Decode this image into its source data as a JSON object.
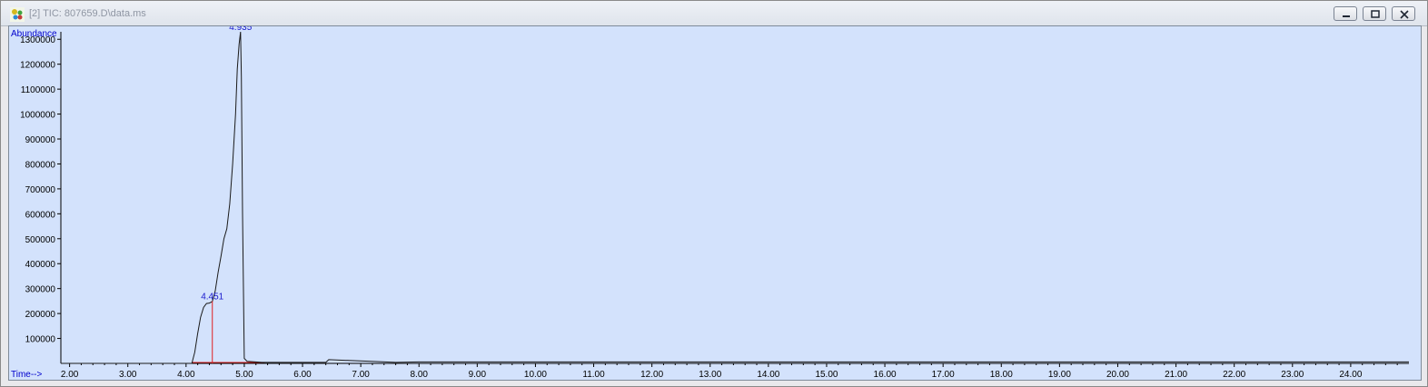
{
  "window": {
    "title": "[2] TIC: 807659.D\\data.ms",
    "icon": "chromatogram-app-icon",
    "controls": [
      "minimize-icon",
      "restore-icon",
      "close-icon"
    ]
  },
  "colors": {
    "plot_background": "#d3e2fc",
    "trace": "#1a1a1a",
    "axis_text": "#000000",
    "axis_label": "#0000cc",
    "peak_label": "#1a1acc",
    "integration_marker": "#e02020"
  },
  "chart_data": {
    "type": "line",
    "ylabel": "Abundance",
    "xlabel": "Time-->",
    "xlim": [
      1.85,
      25.0
    ],
    "ylim": [
      0,
      1330000
    ],
    "x_ticks": [
      2,
      3,
      4,
      5,
      6,
      7,
      8,
      9,
      10,
      11,
      12,
      13,
      14,
      15,
      16,
      17,
      18,
      19,
      20,
      21,
      22,
      23,
      24
    ],
    "x_tick_labels": [
      "2.00",
      "3.00",
      "4.00",
      "5.00",
      "6.00",
      "7.00",
      "8.00",
      "9.00",
      "10.00",
      "11.00",
      "12.00",
      "13.00",
      "14.00",
      "15.00",
      "16.00",
      "17.00",
      "18.00",
      "19.00",
      "20.00",
      "21.00",
      "22.00",
      "23.00",
      "24.00"
    ],
    "y_ticks": [
      100000,
      200000,
      300000,
      400000,
      500000,
      600000,
      700000,
      800000,
      900000,
      1000000,
      1100000,
      1200000,
      1300000
    ],
    "y_tick_labels": [
      "100000",
      "200000",
      "300000",
      "400000",
      "500000",
      "600000",
      "700000",
      "800000",
      "900000",
      "1000000",
      "1100000",
      "1200000",
      "1300000"
    ],
    "series": [
      {
        "x": [
          1.85,
          4.1,
          4.15,
          4.2,
          4.25,
          4.3,
          4.35,
          4.4,
          4.45,
          4.5,
          4.55,
          4.6,
          4.65,
          4.7,
          4.75,
          4.8,
          4.85,
          4.88,
          4.91,
          4.935,
          4.95,
          4.97,
          5.0,
          5.05,
          5.3,
          6.4,
          6.45,
          7.6,
          8.0,
          25.0
        ],
        "y": [
          0,
          0,
          45000,
          120000,
          185000,
          225000,
          240000,
          242000,
          248000,
          290000,
          365000,
          430000,
          500000,
          540000,
          640000,
          800000,
          1000000,
          1180000,
          1280000,
          1330000,
          1150000,
          600000,
          20000,
          8000,
          4000,
          4000,
          15000,
          4000,
          6000,
          6000
        ]
      }
    ],
    "peak_labels": [
      {
        "text": "4.451",
        "x": 4.451,
        "y": 250000
      },
      {
        "text": "4.935",
        "x": 4.935,
        "y": 1330000
      }
    ],
    "integration_markers": [
      4.451
    ],
    "integration_baseline": [
      4.1,
      5.35
    ],
    "grid": false,
    "legend": "none"
  }
}
